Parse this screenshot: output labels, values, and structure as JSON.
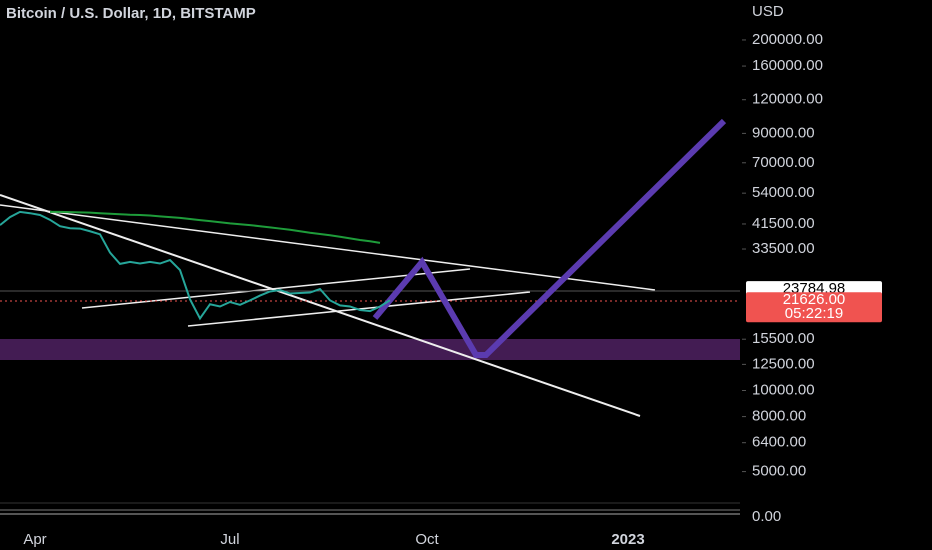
{
  "chart_data": {
    "type": "line",
    "title": "Bitcoin / U.S. Dollar, 1D, BITSTAMP",
    "currency": "USD",
    "log_scale": true,
    "ylim": [
      4024,
      281400
    ],
    "yticks": [
      {
        "value": 200000,
        "label": "200000.00"
      },
      {
        "value": 160000,
        "label": "160000.00"
      },
      {
        "value": 120000,
        "label": "120000.00"
      },
      {
        "value": 90000,
        "label": "90000.00"
      },
      {
        "value": 70000,
        "label": "70000.00"
      },
      {
        "value": 54000,
        "label": "54000.00"
      },
      {
        "value": 41500,
        "label": "41500.00"
      },
      {
        "value": 33500,
        "label": "33500.00"
      },
      {
        "value": 15500,
        "label": "15500.00"
      },
      {
        "value": 12500,
        "label": "12500.00"
      },
      {
        "value": 10000,
        "label": "10000.00"
      },
      {
        "value": 8000,
        "label": "8000.00"
      },
      {
        "value": 6400,
        "label": "6400.00"
      },
      {
        "value": 5000,
        "label": "5000.00"
      }
    ],
    "x_labels": [
      "Apr",
      "Jul",
      "Oct",
      "2023"
    ],
    "series": [
      {
        "color": "#26a69a",
        "values": [
          41100,
          44000,
          46000,
          45500,
          44800,
          43000,
          40700,
          40000,
          39900,
          39000,
          38000,
          32500,
          29500,
          30000,
          29600,
          30000,
          29600,
          30500,
          28000,
          21800,
          18500,
          20900,
          20500,
          21300,
          20800,
          21600,
          22500,
          23300,
          23600,
          22900,
          23000,
          23100,
          23800,
          21600,
          20700,
          20500,
          19900,
          19700,
          20500,
          21626
        ]
      },
      {
        "color": "#1e9c3a",
        "values": [
          null,
          null,
          null,
          null,
          null,
          46000,
          46000,
          45900,
          45800,
          45700,
          45500,
          45300,
          45100,
          44900,
          44800,
          44600,
          44300,
          44000,
          43700,
          43300,
          42900,
          42500,
          42100,
          41700,
          41400,
          41100,
          40700,
          40300,
          39900,
          39500,
          39000,
          38500,
          38100,
          37700,
          37200,
          36700,
          36200,
          35800,
          35300,
          null
        ]
      }
    ],
    "price_tags": [
      {
        "value": 23784.98,
        "label": "23784.98",
        "color": "#ffffff"
      },
      {
        "value": 21626,
        "label": "21626.00",
        "color": "#f05350",
        "countdown": "05:22:19"
      }
    ],
    "indicator_pane": {
      "yticks": [
        {
          "value": 0,
          "label": "0.00"
        }
      ]
    }
  }
}
